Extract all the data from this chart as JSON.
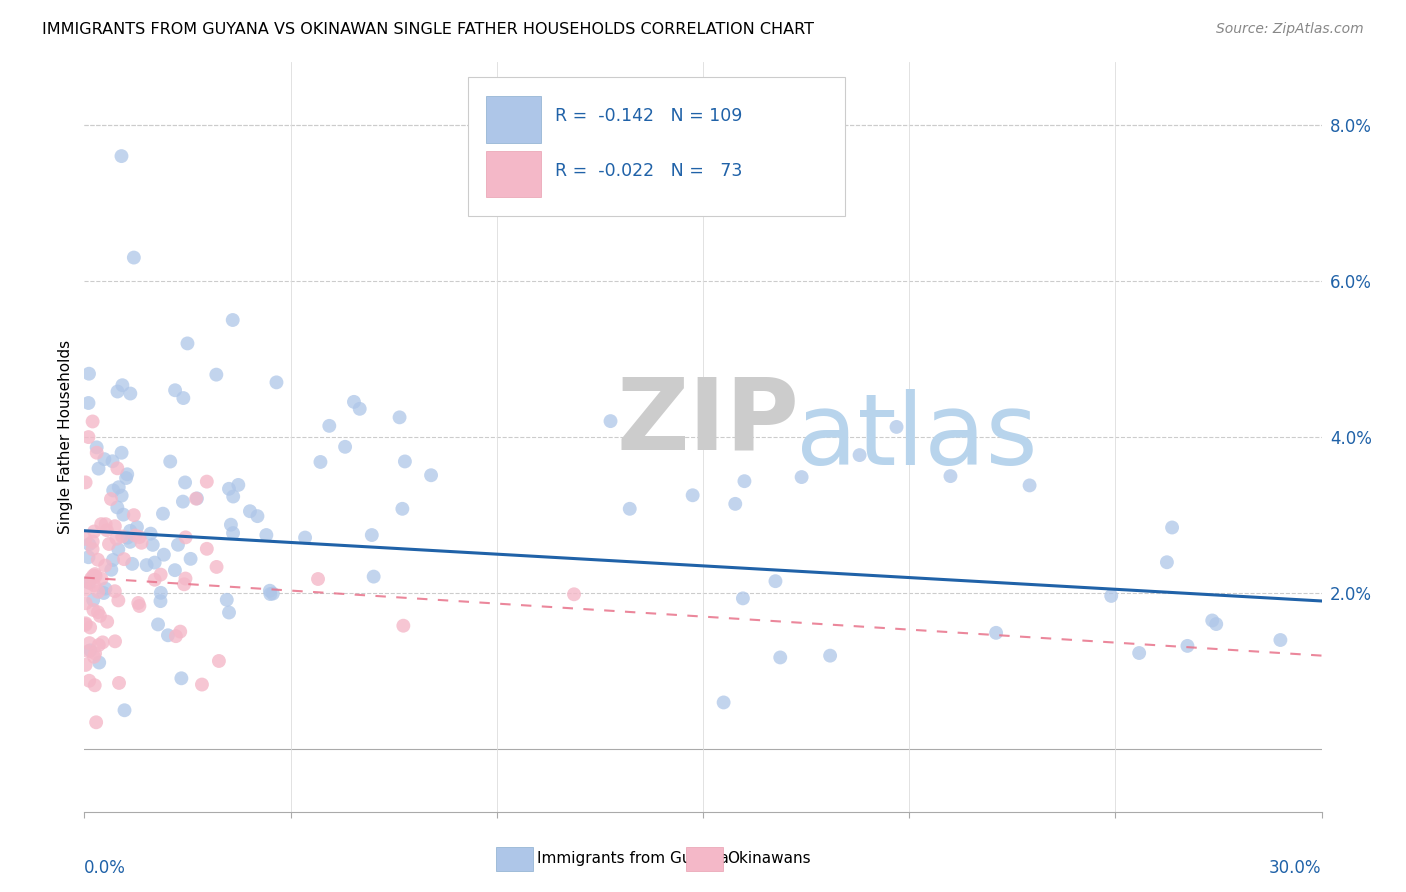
{
  "title": "IMMIGRANTS FROM GUYANA VS OKINAWAN SINGLE FATHER HOUSEHOLDS CORRELATION CHART",
  "source": "Source: ZipAtlas.com",
  "ylabel": "Single Father Households",
  "right_yticks": [
    "8.0%",
    "6.0%",
    "4.0%",
    "2.0%"
  ],
  "right_ytick_vals": [
    0.08,
    0.06,
    0.04,
    0.02
  ],
  "legend_blue_label": "R =  -0.142   N = 109",
  "legend_pink_label": "R =  -0.022   N =  73",
  "legend_blue_color": "#aec6e8",
  "legend_pink_color": "#f4b8c8",
  "scatter_blue_color": "#aec6e8",
  "scatter_pink_color": "#f4b8c8",
  "trend_blue_color": "#2062a8",
  "trend_pink_color": "#e8728a",
  "watermark_zip": "ZIP",
  "watermark_atlas": "atlas",
  "xlim": [
    0.0,
    0.3
  ],
  "ylim": [
    -0.008,
    0.088
  ],
  "blue_trend": [
    0.028,
    0.019
  ],
  "pink_trend": [
    0.022,
    0.012
  ]
}
